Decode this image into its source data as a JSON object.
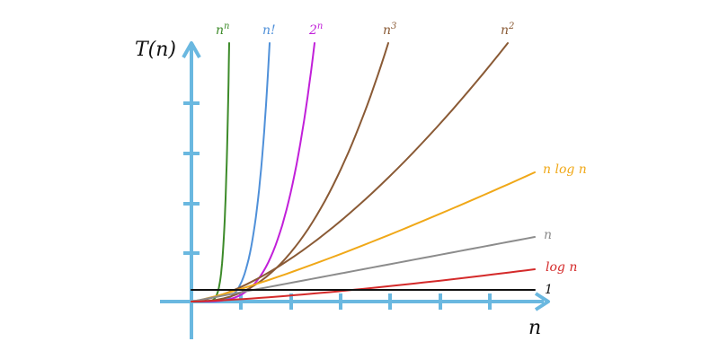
{
  "chart_data": {
    "type": "line",
    "xlabel": "n",
    "ylabel": "T(n)",
    "grid": false,
    "legend": "inline labels at curve ends",
    "axis_color": "#6ab8e0",
    "series": [
      {
        "name": "n^n",
        "label_base": "n",
        "label_sup": "n",
        "color": "#3d8b2a",
        "kind": "nn"
      },
      {
        "name": "n!",
        "label_base": "n!",
        "label_sup": "",
        "color": "#4f90d9",
        "kind": "fact"
      },
      {
        "name": "2^n",
        "label_base": "2",
        "label_sup": "n",
        "color": "#c11fd9",
        "kind": "exp2"
      },
      {
        "name": "n^3",
        "label_base": "n",
        "label_sup": "3",
        "color": "#8a5a35",
        "kind": "cube"
      },
      {
        "name": "n^2",
        "label_base": "n",
        "label_sup": "2",
        "color": "#8a5a35",
        "kind": "square"
      },
      {
        "name": "n log n",
        "label_base": "n log n",
        "label_sup": "",
        "color": "#f0a818",
        "kind": "nlogn"
      },
      {
        "name": "n",
        "label_base": "n",
        "label_sup": "",
        "color": "#8c8c8c",
        "kind": "linear"
      },
      {
        "name": "log n",
        "label_base": "log n",
        "label_sup": "",
        "color": "#d42a2a",
        "kind": "log"
      },
      {
        "name": "1",
        "label_base": "1",
        "label_sup": "",
        "color": "#111111",
        "kind": "const"
      }
    ]
  }
}
